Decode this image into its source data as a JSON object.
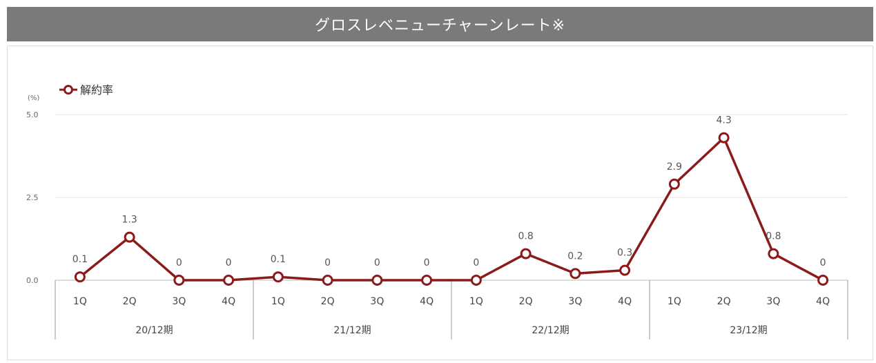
{
  "header": {
    "title": "グロスレベニューチャーンレート※"
  },
  "chart_data": {
    "type": "line",
    "unit_label": "(%)",
    "legend_label": "解約率",
    "series_color": "#8b1a1a",
    "ylim": [
      0,
      5.0
    ],
    "yticks": [
      "0.0",
      "2.5",
      "5.0"
    ],
    "grid": true,
    "legend_position": "top-left",
    "categories": [
      "1Q",
      "2Q",
      "3Q",
      "4Q",
      "1Q",
      "2Q",
      "3Q",
      "4Q",
      "1Q",
      "2Q",
      "3Q",
      "4Q",
      "1Q",
      "2Q",
      "3Q",
      "4Q"
    ],
    "groups": [
      "20/12期",
      "21/12期",
      "22/12期",
      "23/12期"
    ],
    "series": [
      {
        "name": "解約率",
        "values": [
          0.1,
          1.3,
          0,
          0,
          0.1,
          0,
          0,
          0,
          0,
          0.8,
          0.2,
          0.3,
          2.9,
          4.3,
          0.8,
          0
        ],
        "labels": [
          "0.1",
          "1.3",
          "0",
          "0",
          "0.1",
          "0",
          "0",
          "0",
          "0",
          "0.8",
          "0.2",
          "0.3",
          "2.9",
          "4.3",
          "0.8",
          "0"
        ]
      }
    ]
  }
}
